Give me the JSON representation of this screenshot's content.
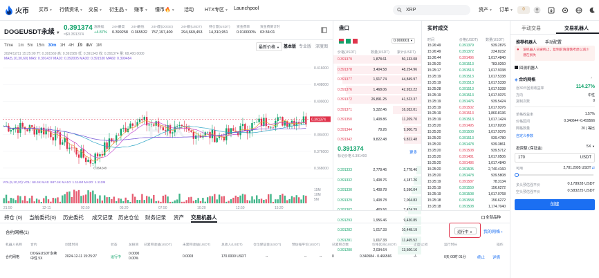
{
  "logo": {
    "text": "火币"
  },
  "nav": [
    {
      "label": "买币"
    },
    {
      "label": "行情资讯"
    },
    {
      "label": "交易"
    },
    {
      "label": "衍生品"
    },
    {
      "label": "赚币"
    },
    {
      "label": "懂币"
    },
    {
      "label": "活动"
    },
    {
      "label": "HTX专区"
    },
    {
      "label": "Launchpool"
    }
  ],
  "search": {
    "value": "XRP"
  },
  "topright": {
    "assets": "资产",
    "orders": "订单",
    "badge": "0"
  },
  "symbol": {
    "name": "DOGEUSDT永续",
    "price": "0.391374",
    "sub": "≈$0.391374"
  },
  "stats": [
    {
      "label": "涨跌幅",
      "value": "+4.87%"
    },
    {
      "label": "24H最高",
      "value": "0.399258"
    },
    {
      "label": "24H最低",
      "value": "0.365532"
    },
    {
      "label": "24H量(DOGE)",
      "value": "757,197,400"
    },
    {
      "label": "24H额(USDT)",
      "value": "294,669,453"
    },
    {
      "label": "持仓量(USDT)",
      "value": "14,310,951"
    },
    {
      "label": "资金费率",
      "value": "0.010000%"
    },
    {
      "label": "资金费倒计时",
      "value": "03:34:01"
    }
  ],
  "timeframes": [
    "Time",
    "1m",
    "5m",
    "15m",
    "30m",
    "1H",
    "4H",
    "1D",
    "1W",
    "1M"
  ],
  "chart_views": {
    "latest": "最新价格",
    "basic": "基本版",
    "pro": "专业版",
    "depth": "深度图"
  },
  "chart_info": {
    "ohlc": "2024/12/11 15:25:00 开: 0.391569 高: 0.391589 低: 0.391343 收: 0.391374 量: 68,400.0000",
    "ma": "MA(5,10,30,60)  MA5: 0.391437  MA10: 0.392005  MA30: 0.391530  MA60: 0.390484",
    "vol": "VOL(5,10,20)  VOL: 68.4K  MA5: 987.4K  MA10: 1.114M  MA20: 1.112M",
    "price_label": "0.391374",
    "low_label": "0.364248",
    "watermark": "HTX"
  },
  "price_axis": [
    "0.416000",
    "0.408000",
    "0.400000",
    "0.392000",
    "0.384000",
    "0.376000",
    "0.368000"
  ],
  "vol_axis": [
    "15M",
    "10M",
    "5M"
  ],
  "time_axis": [
    "21:50",
    "12-11",
    "02:50",
    "05:20",
    "07:50",
    "10:20",
    "12:50",
    "15:20"
  ],
  "chart_data": {
    "type": "line",
    "title": "",
    "x": [
      "21:50",
      "12-11",
      "02:50",
      "05:20",
      "07:50",
      "10:20",
      "12:50",
      "15:20"
    ],
    "series": [
      {
        "name": "",
        "values": [
          0.388,
          0.386,
          0.371,
          0.391,
          0.386,
          0.383,
          0.39,
          0.391
        ]
      }
    ],
    "ylim": [
      0.364,
      0.418
    ]
  },
  "orderbook": {
    "title": "盘口",
    "precision": "0.000001",
    "cols": [
      "价格(USDT)",
      "数量(USDT)",
      "累计(USDT)"
    ],
    "asks": [
      [
        "0.391379",
        "1,878.61",
        "50,133.08"
      ],
      [
        "0.391378",
        "3,404.58",
        "48,254.96"
      ],
      [
        "0.391377",
        "1,917.74",
        "44,849.97"
      ],
      [
        "0.391376",
        "1,468.06",
        "42,932.22"
      ],
      [
        "0.391372",
        "26,891.25",
        "41,523.37"
      ],
      [
        "0.391371",
        "5,322.46",
        "16,032.01"
      ],
      [
        "0.391350",
        "1,408.86",
        "11,209.70"
      ],
      [
        "0.391344",
        "78.26",
        "9,900.75"
      ],
      [
        "0.391342",
        "9,822.48",
        "9,822.48"
      ]
    ],
    "mid": {
      "price": "0.391374",
      "mark": "标记价格 0.391400",
      "more": "更多"
    },
    "bids": [
      [
        "0.391333",
        "2,778.46",
        "2,778.46"
      ],
      [
        "0.391332",
        "1,408.76",
        "4,187.26"
      ],
      [
        "0.391330",
        "1,408.78",
        "5,596.04"
      ],
      [
        "0.391329",
        "1,408.78",
        "7,004.83"
      ],
      [
        "0.391302",
        "469.56",
        "7,474.39"
      ],
      [
        "0.391293",
        "1,956.46",
        "9,430.85"
      ],
      [
        "0.391282",
        "1,017.33",
        "10,448.19"
      ],
      [
        "0.391281",
        "1,017.33",
        "11,465.52"
      ],
      [
        "0.391280",
        "2,034.64",
        "13,500.16"
      ]
    ]
  },
  "trades": {
    "title": "实时成交",
    "cols": [
      "时间",
      "价格(USDT)",
      "数量(USDT)"
    ],
    "rows": [
      [
        "15:26:49",
        "0.391379",
        "939.2876"
      ],
      [
        "15:26:49",
        "0.391372",
        "234.8232"
      ],
      [
        "15:26:44",
        "0.391496",
        "1,017.4840"
      ],
      [
        "15:25:20",
        "0.391513",
        "783.0260"
      ],
      [
        "15:25:17",
        "0.391513",
        "1,017.9338"
      ],
      [
        "15:25:19",
        "0.391513",
        "1,017.5338"
      ],
      [
        "15:25:19",
        "0.391513",
        "1,017.5338"
      ],
      [
        "15:25:28",
        "0.391513",
        "1,017.5338"
      ],
      [
        "15:25:19",
        "0.391513",
        "1,017.9376"
      ],
      [
        "15:25:19",
        "0.391476",
        "939.5424"
      ],
      [
        "15:25:19",
        "0.391502",
        "1,017.9376"
      ],
      [
        "15:25:19",
        "0.391513",
        "1,860.8136"
      ],
      [
        "15:25:19",
        "0.391513",
        "1,017.1424"
      ],
      [
        "15:25:20",
        "0.391495",
        "1,017.8208"
      ],
      [
        "15:25:20",
        "0.391500",
        "1,017.9376"
      ],
      [
        "15:25:20",
        "0.391513",
        "939.4780"
      ],
      [
        "15:25:20",
        "0.391478",
        "939.3861"
      ],
      [
        "15:25:20",
        "0.391508",
        "939.5712"
      ],
      [
        "15:25:20",
        "0.391481",
        "1,017.0506"
      ],
      [
        "15:25:20",
        "0.391486",
        "1,017.4840"
      ],
      [
        "15:25:20",
        "0.391505",
        "2,740.4160"
      ],
      [
        "15:25:20",
        "0.391478",
        "939.5808"
      ],
      [
        "15:25:19",
        "0.391587",
        "78.3134"
      ],
      [
        "15:25:19",
        "0.391550",
        "156.6272"
      ],
      [
        "15:25:19",
        "0.391508",
        "1,017.0768"
      ],
      [
        "15:25:18",
        "0.391558",
        "156.6272"
      ],
      [
        "15:25:18",
        "0.391508",
        "1,174.7040"
      ]
    ]
  },
  "right_panel": {
    "tabs": [
      "手动交易",
      "交易机器人"
    ],
    "sub_tabs": [
      "推荐机器人",
      "手动配置"
    ],
    "notice": "该机器人已被终止，复制前请谨慎考虑以减少潜在损失",
    "robot": "回测机器人",
    "item_label": "合约网格",
    "yield_label": "近30日回测收益率",
    "yield_value": "114.27%",
    "direction_label": "方向",
    "direction_value": "中性",
    "backtest_label": "复制次数",
    "backtest_value": "0",
    "profit_label": "单格收益率",
    "profit_value": "1.57%",
    "range_label": "价格区间",
    "range_value": "0.340644~0.459566",
    "grid_label": "网格数量",
    "grid_value": "20 | 等比",
    "advanced": "自定义参数",
    "invest_label": "投资额 (保证金)",
    "leverage": "5X",
    "invest_value": "170",
    "invest_unit": "USDT",
    "avail_label": "可用",
    "avail_value": "2,781.2095 USDT",
    "long_liq_label": "多头预估强平价",
    "long_liq_value": "0.178928 USDT",
    "short_liq_label": "空头预估强平价",
    "short_liq_value": "0.583225 USDT",
    "create": "创建"
  },
  "bottom": {
    "tabs": [
      "持仓 (0)",
      "当前委托(0)",
      "历史委托",
      "成交记录",
      "历史仓位",
      "财务记录",
      "资产",
      "交易机器人"
    ],
    "show_all": "全部品种",
    "section": "合约网格(1)",
    "filter": "运行中",
    "my_grids": "我的网格",
    "cols": [
      "机器人名称",
      "合约",
      "创建时间",
      "状态",
      "总投资",
      "已累积收益(USDT)",
      "未累积收益(USDT)",
      "总收入(USDT)",
      "仓位保证金(USDT)",
      "预估强平价(USDT)",
      "已累积次数",
      "价格区间(USDT)",
      "止盈/止损",
      "运行时长",
      "操作"
    ],
    "row": {
      "name": "合约网格",
      "contract": "DOGEUSDT永续 中性 5X",
      "created": "2024-12-11 15:25:27",
      "status": "运行中",
      "invest": "0.0000 0.00%",
      "acc": "0.0003",
      "unacc": "170.0000 USDT",
      "total": "--",
      "margin": "--",
      "liq": "--",
      "count": "0",
      "range": "0.340584 - 0.466566",
      "tpsl": "-/-",
      "runtime": "0天 00时 01分",
      "action1": "终止",
      "action2": "详情"
    }
  }
}
